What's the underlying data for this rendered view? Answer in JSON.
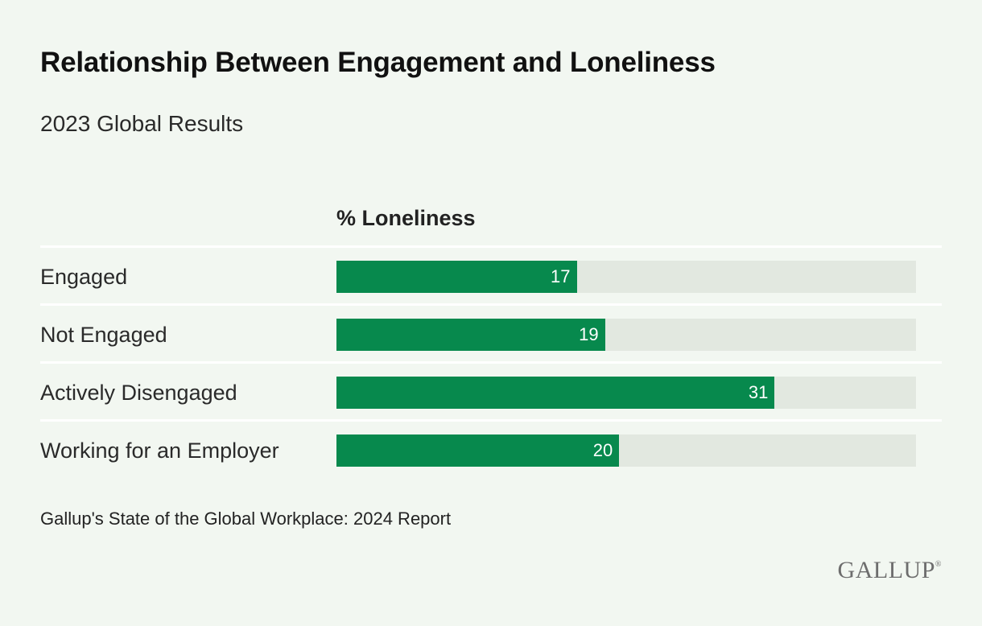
{
  "chart_data": {
    "type": "bar",
    "orientation": "horizontal",
    "title": "Relationship Between Engagement and Loneliness",
    "subtitle": "2023 Global Results",
    "value_header": "% Loneliness",
    "categories": [
      "Engaged",
      "Not Engaged",
      "Actively Disengaged",
      "Working for an Employer"
    ],
    "values": [
      17,
      19,
      31,
      20
    ],
    "xlim": [
      0,
      41
    ],
    "grid": false,
    "data_labels": true,
    "bar_color": "#07894d",
    "track_color": "#e2e8e0"
  },
  "source": "Gallup's State of the Global Workplace: 2024 Report",
  "logo": "GALLUP"
}
